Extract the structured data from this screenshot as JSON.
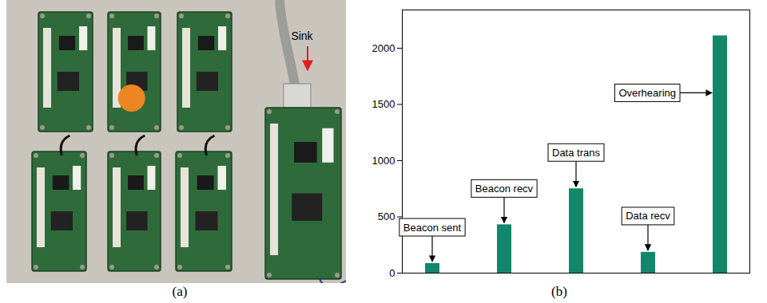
{
  "photo": {
    "caption": "(a)",
    "annotation": "Sink"
  },
  "chart_data": {
    "type": "bar",
    "caption": "(b)",
    "categories": [
      "Beacon sent",
      "Beacon recv",
      "Data trans",
      "Data recv",
      "Overhearing"
    ],
    "values": [
      85,
      430,
      750,
      185,
      2110
    ],
    "color": "#13876b",
    "ylim": [
      0,
      2340
    ],
    "yticks": [
      0,
      500,
      1000,
      1500,
      2000
    ],
    "tick_labels": "y"
  }
}
